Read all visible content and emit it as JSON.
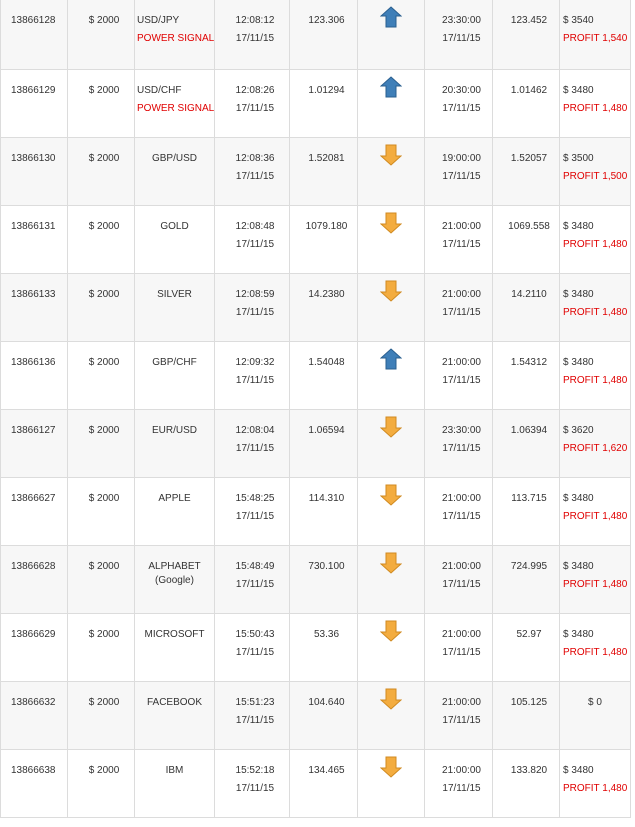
{
  "colors": {
    "up_icon": "#3f7fb8",
    "down_icon": "#f3ac3f",
    "profit_text": "#e00000",
    "grid": "#dcdcdc"
  },
  "trades": [
    {
      "id": "13866128",
      "amount": "$ 2000",
      "asset": "USD/JPY",
      "signal": "POWER SIGNAL",
      "open_time": "12:08:12",
      "open_date": "17/11/15",
      "open_price": "123.306",
      "direction": "up",
      "direction_icon": "up-arrow-icon",
      "expiry_time": "23:30:00",
      "expiry_date": "17/11/15",
      "close_price": "123.452",
      "payout": "$ 3540",
      "result": "PROFIT 1,540"
    },
    {
      "id": "13866129",
      "amount": "$ 2000",
      "asset": "USD/CHF",
      "signal": "POWER SIGNAL",
      "open_time": "12:08:26",
      "open_date": "17/11/15",
      "open_price": "1.01294",
      "direction": "up",
      "direction_icon": "up-arrow-icon",
      "expiry_time": "20:30:00",
      "expiry_date": "17/11/15",
      "close_price": "1.01462",
      "payout": "$ 3480",
      "result": "PROFIT 1,480"
    },
    {
      "id": "13866130",
      "amount": "$ 2000",
      "asset": "GBP/USD",
      "open_time": "12:08:36",
      "open_date": "17/11/15",
      "open_price": "1.52081",
      "direction": "down",
      "direction_icon": "down-arrow-icon",
      "expiry_time": "19:00:00",
      "expiry_date": "17/11/15",
      "close_price": "1.52057",
      "payout": "$ 3500",
      "result": "PROFIT 1,500"
    },
    {
      "id": "13866131",
      "amount": "$ 2000",
      "asset": "GOLD",
      "open_time": "12:08:48",
      "open_date": "17/11/15",
      "open_price": "1079.180",
      "direction": "down",
      "direction_icon": "down-arrow-icon",
      "expiry_time": "21:00:00",
      "expiry_date": "17/11/15",
      "close_price": "1069.558",
      "payout": "$ 3480",
      "result": "PROFIT 1,480"
    },
    {
      "id": "13866133",
      "amount": "$ 2000",
      "asset": "SILVER",
      "open_time": "12:08:59",
      "open_date": "17/11/15",
      "open_price": "14.2380",
      "direction": "down",
      "direction_icon": "down-arrow-icon",
      "expiry_time": "21:00:00",
      "expiry_date": "17/11/15",
      "close_price": "14.2110",
      "payout": "$ 3480",
      "result": "PROFIT 1,480"
    },
    {
      "id": "13866136",
      "amount": "$ 2000",
      "asset": "GBP/CHF",
      "open_time": "12:09:32",
      "open_date": "17/11/15",
      "open_price": "1.54048",
      "direction": "up",
      "direction_icon": "up-arrow-icon",
      "expiry_time": "21:00:00",
      "expiry_date": "17/11/15",
      "close_price": "1.54312",
      "payout": "$ 3480",
      "result": "PROFIT 1,480"
    },
    {
      "id": "13866127",
      "amount": "$ 2000",
      "asset": "EUR/USD",
      "open_time": "12:08:04",
      "open_date": "17/11/15",
      "open_price": "1.06594",
      "direction": "down",
      "direction_icon": "down-arrow-icon",
      "expiry_time": "23:30:00",
      "expiry_date": "17/11/15",
      "close_price": "1.06394",
      "payout": "$ 3620",
      "result": "PROFIT 1,620"
    },
    {
      "id": "13866627",
      "amount": "$ 2000",
      "asset": "APPLE",
      "open_time": "15:48:25",
      "open_date": "17/11/15",
      "open_price": "114.310",
      "direction": "down",
      "direction_icon": "down-arrow-icon",
      "expiry_time": "21:00:00",
      "expiry_date": "17/11/15",
      "close_price": "113.715",
      "payout": "$ 3480",
      "result": "PROFIT 1,480"
    },
    {
      "id": "13866628",
      "amount": "$ 2000",
      "asset": "ALPHABET",
      "asset_sub": "(Google)",
      "open_time": "15:48:49",
      "open_date": "17/11/15",
      "open_price": "730.100",
      "direction": "down",
      "direction_icon": "down-arrow-icon",
      "expiry_time": "21:00:00",
      "expiry_date": "17/11/15",
      "close_price": "724.995",
      "payout": "$ 3480",
      "result": "PROFIT 1,480"
    },
    {
      "id": "13866629",
      "amount": "$ 2000",
      "asset": "MICROSOFT",
      "open_time": "15:50:43",
      "open_date": "17/11/15",
      "open_price": "53.36",
      "direction": "down",
      "direction_icon": "down-arrow-icon",
      "expiry_time": "21:00:00",
      "expiry_date": "17/11/15",
      "close_price": "52.97",
      "payout": "$ 3480",
      "result": "PROFIT 1,480"
    },
    {
      "id": "13866632",
      "amount": "$ 2000",
      "asset": "FACEBOOK",
      "open_time": "15:51:23",
      "open_date": "17/11/15",
      "open_price": "104.640",
      "direction": "down",
      "direction_icon": "down-arrow-icon",
      "expiry_time": "21:00:00",
      "expiry_date": "17/11/15",
      "close_price": "105.125",
      "payout": "$ 0",
      "result": ""
    },
    {
      "id": "13866638",
      "amount": "$ 2000",
      "asset": "IBM",
      "open_time": "15:52:18",
      "open_date": "17/11/15",
      "open_price": "134.465",
      "direction": "down",
      "direction_icon": "down-arrow-icon",
      "expiry_time": "21:00:00",
      "expiry_date": "17/11/15",
      "close_price": "133.820",
      "payout": "$ 3480",
      "result": "PROFIT 1,480"
    }
  ]
}
